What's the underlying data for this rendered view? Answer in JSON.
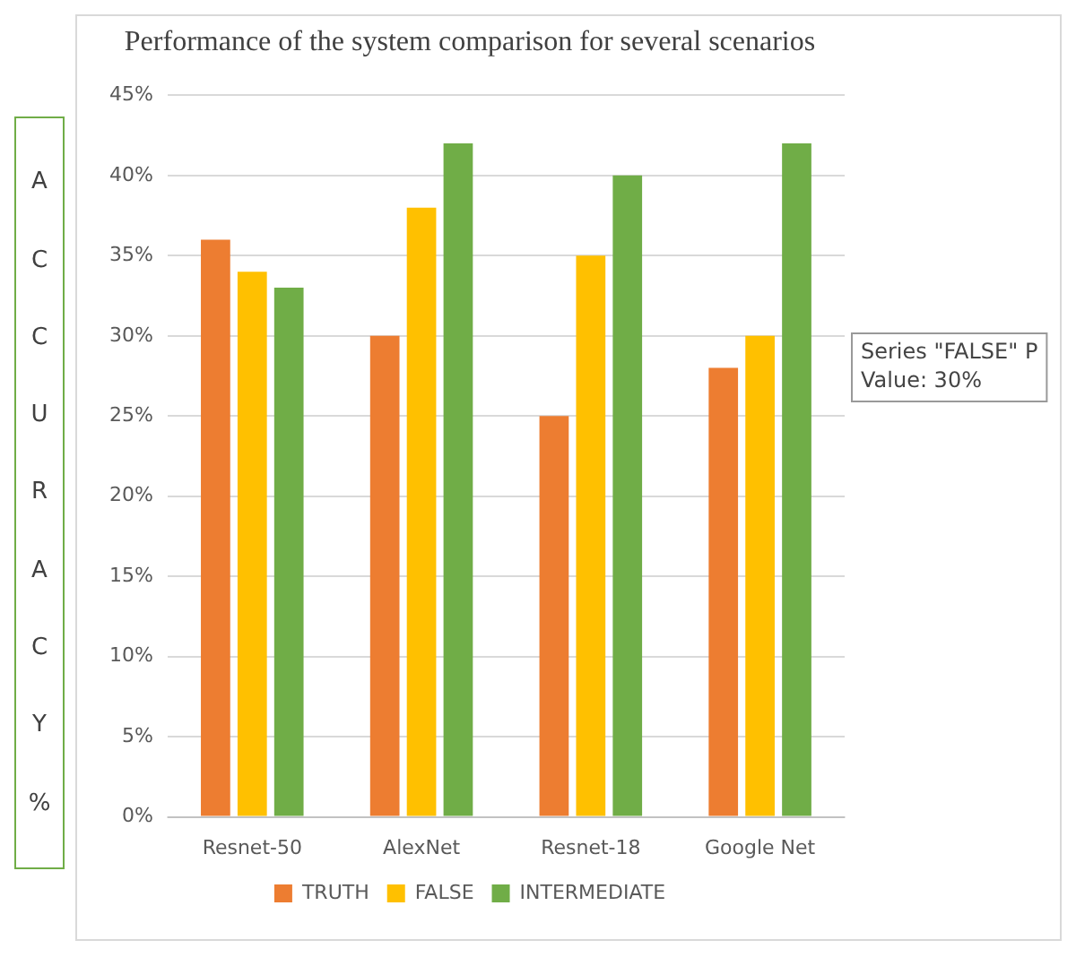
{
  "chart_data": {
    "type": "bar",
    "title": "Performance of the system comparison for several scenarios",
    "ylabel": "ACCURACY %",
    "categories": [
      "Resnet-50",
      "AlexNet",
      "Resnet-18",
      "Google Net"
    ],
    "series": [
      {
        "name": "TRUTH",
        "color": "#ed7d31",
        "values": [
          36,
          30,
          25,
          28
        ]
      },
      {
        "name": "FALSE",
        "color": "#ffc000",
        "values": [
          34,
          38,
          35,
          30
        ]
      },
      {
        "name": "INTERMEDIATE",
        "color": "#70ad47",
        "values": [
          33,
          42,
          40,
          42
        ]
      }
    ],
    "ylim": [
      0,
      45
    ],
    "yticks": [
      {
        "value": 0,
        "label": "0%"
      },
      {
        "value": 5,
        "label": "5%"
      },
      {
        "value": 10,
        "label": "10%"
      },
      {
        "value": 15,
        "label": "15%"
      },
      {
        "value": 20,
        "label": "20%"
      },
      {
        "value": 25,
        "label": "25%"
      },
      {
        "value": 30,
        "label": "30%"
      },
      {
        "value": 35,
        "label": "35%"
      },
      {
        "value": 40,
        "label": "40%"
      },
      {
        "value": 45,
        "label": "45%"
      }
    ],
    "grid": "y",
    "legend": "bottom",
    "annotations": [
      "Series \"FALSE\" P\nValue: 30%"
    ]
  }
}
